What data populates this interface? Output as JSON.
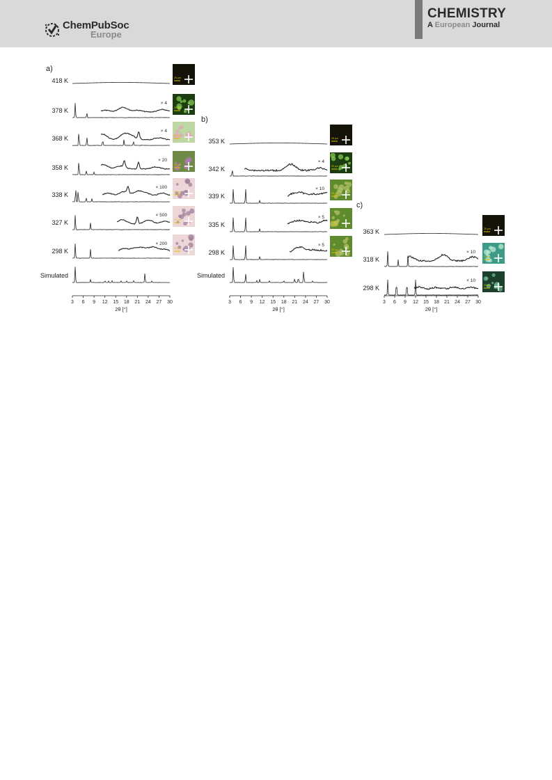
{
  "header": {
    "publisher_name": "ChemPubSoc",
    "publisher_region": "Europe",
    "journal_title": "CHEMISTRY",
    "journal_prefix": "A",
    "journal_european": "European",
    "journal_word": "Journal"
  },
  "figure": {
    "colors": {
      "trace": "#222222",
      "header": "#d9d9d9",
      "dark_micrograph": "#151208",
      "scale_text": "#e0c000"
    },
    "micrograph_scale_label": "25 µm",
    "x_axis_label": "2θ [°]",
    "x_ticks": [
      "3",
      "6",
      "9",
      "12",
      "15",
      "18",
      "21",
      "24",
      "27",
      "30"
    ],
    "panels": [
      {
        "label": "a)",
        "rows": [
          {
            "temp": "418 K",
            "scale": "",
            "micro": "dark",
            "peaks": [],
            "low": []
          },
          {
            "temp": "378 K",
            "scale": "× 4",
            "micro": "green-dark",
            "peaks": [
              [
                3.8,
                1.0
              ],
              [
                7.0,
                0.32
              ]
            ],
            "low": [
              [
                12,
                0.25
              ],
              [
                17,
                0.7
              ],
              [
                21,
                0.25
              ],
              [
                28,
                0.35
              ]
            ]
          },
          {
            "temp": "368 K",
            "scale": "× 4",
            "micro": "green-light",
            "peaks": [
              [
                4.8,
                1.0
              ],
              [
                7.0,
                0.6
              ],
              [
                11.4,
                0.4
              ],
              [
                17.3,
                0.4
              ],
              [
                19.9,
                0.3
              ]
            ],
            "low": [
              [
                11.4,
                0.8
              ],
              [
                17.3,
                0.75
              ],
              [
                19.3,
                0.5
              ],
              [
                21.4,
                1.0
              ],
              [
                27,
                0.3
              ]
            ]
          },
          {
            "temp": "358 K",
            "scale": "× 20",
            "micro": "green-purple",
            "peaks": [
              [
                4.8,
                1.0
              ],
              [
                6.9,
                0.28
              ],
              [
                9.0,
                0.18
              ]
            ],
            "low": [
              [
                11.5,
                0.65
              ],
              [
                16.4,
                0.45
              ],
              [
                17.4,
                0.85
              ],
              [
                21.3,
                1.0
              ],
              [
                26,
                0.3
              ]
            ]
          },
          {
            "temp": "338 K",
            "scale": "× 100",
            "micro": "pink",
            "peaks": [
              [
                3.9,
                1.0
              ],
              [
                4.6,
                0.8
              ],
              [
                6.8,
                0.3
              ],
              [
                8.4,
                0.2
              ]
            ],
            "low": [
              [
                12.8,
                0.45
              ],
              [
                17.3,
                0.65
              ],
              [
                18.4,
                0.9
              ],
              [
                21.2,
                0.7
              ],
              [
                23.5,
                0.35
              ],
              [
                28,
                0.45
              ]
            ]
          },
          {
            "temp": "327 K",
            "scale": "× 500",
            "micro": "pink",
            "peaks": [
              [
                3.8,
                1.0
              ],
              [
                8.0,
                0.45
              ]
            ],
            "low": [
              [
                16.8,
                0.6
              ],
              [
                21.0,
                1.0
              ],
              [
                24.1,
                0.55
              ],
              [
                28.8,
                0.4
              ]
            ]
          },
          {
            "temp": "298 K",
            "scale": "× 200",
            "micro": "pink",
            "peaks": [
              [
                3.8,
                1.0
              ],
              [
                8.0,
                0.6
              ]
            ],
            "low": [
              [
                17.2,
                0.55
              ],
              [
                20.4,
                0.6
              ],
              [
                22.8,
                0.55
              ],
              [
                25.6,
                0.75
              ],
              [
                28.8,
                0.45
              ]
            ]
          },
          {
            "temp": "Simulated",
            "scale": "",
            "micro": "",
            "peaks": [
              [
                3.8,
                1.0
              ],
              [
                8.0,
                0.18
              ],
              [
                12,
                0.12
              ],
              [
                13,
                0.1
              ],
              [
                14,
                0.12
              ],
              [
                16.5,
                0.1
              ],
              [
                18,
                0.1
              ],
              [
                20,
                0.12
              ],
              [
                23.1,
                0.6
              ],
              [
                25,
                0.08
              ]
            ],
            "low": []
          }
        ]
      },
      {
        "label": "b)",
        "rows": [
          {
            "temp": "353 K",
            "scale": "",
            "micro": "dark",
            "peaks": [],
            "low": []
          },
          {
            "temp": "342 K",
            "scale": "× 4",
            "micro": "green-dark",
            "peaks": [
              [
                3.7,
                0.5
              ]
            ],
            "low": [
              [
                7,
                0.25
              ],
              [
                20,
                0.9
              ],
              [
                28,
                0.35
              ]
            ]
          },
          {
            "temp": "339 K",
            "scale": "× 10",
            "micro": "green-olive",
            "peaks": [
              [
                4.0,
                1.0
              ],
              [
                7.4,
                1.0
              ],
              [
                11.3,
                0.2
              ]
            ],
            "low": [
              [
                20.5,
                0.5
              ],
              [
                22.8,
                0.6
              ],
              [
                26,
                0.5
              ],
              [
                29.5,
                0.7
              ]
            ]
          },
          {
            "temp": "335 K",
            "scale": "× 5",
            "micro": "green-olive",
            "peaks": [
              [
                4.0,
                1.0
              ],
              [
                7.4,
                1.0
              ],
              [
                11.3,
                0.2
              ]
            ],
            "low": [
              [
                20.5,
                0.5
              ],
              [
                22.8,
                0.7
              ],
              [
                26,
                0.55
              ],
              [
                29.5,
                0.8
              ]
            ]
          },
          {
            "temp": "298 K",
            "scale": "× 5",
            "micro": "green-olive",
            "peaks": [
              [
                4.0,
                1.0
              ],
              [
                7.4,
                1.0
              ],
              [
                11.3,
                0.2
              ]
            ],
            "low": [
              [
                21.0,
                0.45
              ],
              [
                22.8,
                0.8
              ],
              [
                26,
                0.55
              ],
              [
                29,
                0.5
              ]
            ]
          },
          {
            "temp": "Simulated",
            "scale": "",
            "micro": "",
            "peaks": [
              [
                4.0,
                1.0
              ],
              [
                7.4,
                0.55
              ],
              [
                10.5,
                0.12
              ],
              [
                11.3,
                0.18
              ],
              [
                14,
                0.1
              ],
              [
                18,
                0.1
              ],
              [
                21,
                0.25
              ],
              [
                22,
                0.35
              ],
              [
                23.5,
                0.8
              ],
              [
                26,
                0.1
              ]
            ],
            "low": []
          }
        ]
      },
      {
        "label": "c)",
        "rows": [
          {
            "temp": "363 K",
            "scale": "",
            "micro": "dark",
            "peaks": [],
            "low": []
          },
          {
            "temp": "318 K",
            "scale": "× 10",
            "micro": "teal",
            "peaks": [
              [
                4.0,
                1.0
              ],
              [
                7.0,
                0.45
              ],
              [
                9.8,
                0.7
              ]
            ],
            "low": [
              [
                10.3,
                0.6
              ],
              [
                20,
                0.9
              ],
              [
                28.5,
                0.6
              ]
            ]
          },
          {
            "temp": "298 K",
            "scale": "× 10",
            "micro": "dark-teal",
            "peaks": [
              [
                4.0,
                1.0
              ],
              [
                6.5,
                1.0
              ],
              [
                9.5,
                1.0
              ],
              [
                12.0,
                1.0
              ]
            ],
            "low": [
              [
                13,
                0.35
              ],
              [
                18,
                0.3
              ],
              [
                23,
                0.35
              ],
              [
                28,
                0.3
              ]
            ]
          }
        ]
      }
    ]
  }
}
